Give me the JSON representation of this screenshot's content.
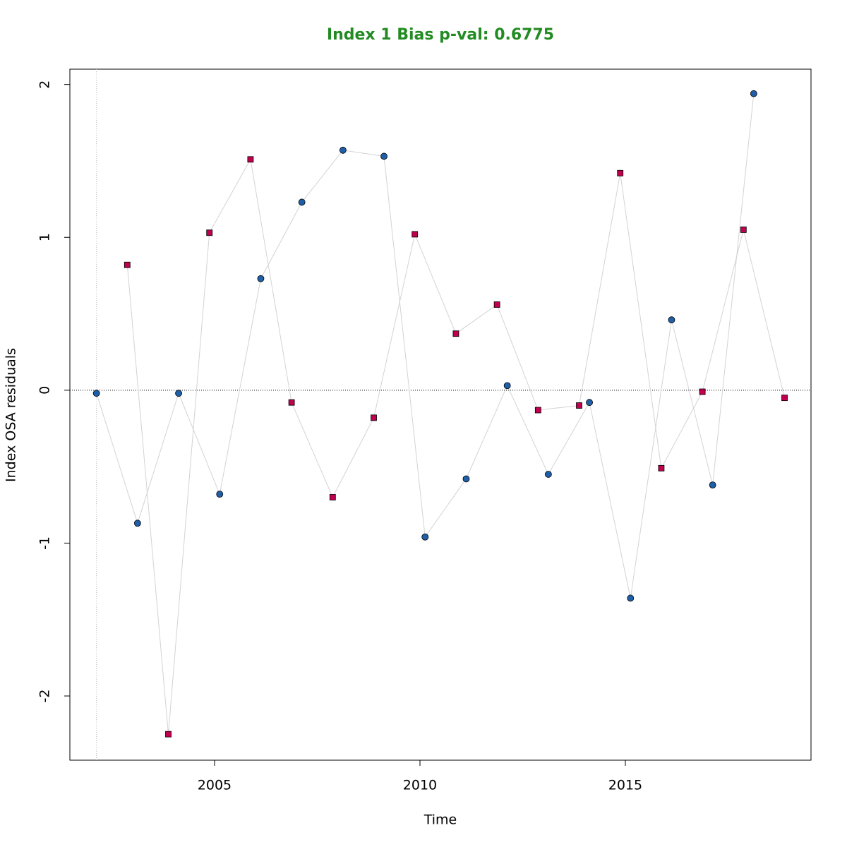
{
  "chart_data": {
    "type": "scatter",
    "title": "Index 1 Bias p-val: 0.6775",
    "x_label": "Time",
    "y_label": "Index OSA residuals",
    "xlim": [
      2001.478,
      2019.519
    ],
    "ylim": [
      -2.42,
      2.1
    ],
    "xticks": [
      2005,
      2010,
      2015
    ],
    "yticks": [
      -2,
      -1,
      0,
      1,
      2
    ],
    "hline": 0,
    "vline": 2002.125,
    "line_color": "#d3d3d3",
    "series": [
      {
        "color": "#1f5fa8",
        "marker": "circle",
        "x": [
          2002.125,
          2003.125,
          2004.125,
          2005.125,
          2006.125,
          2007.125,
          2008.125,
          2009.125,
          2010.125,
          2011.125,
          2012.125,
          2013.125,
          2014.125,
          2015.125,
          2016.125,
          2017.125,
          2018.125
        ],
        "values": [
          -0.02,
          -0.87,
          -0.02,
          -0.68,
          0.73,
          1.23,
          1.57,
          1.53,
          -0.96,
          -0.58,
          0.03,
          -0.55,
          -0.08,
          -1.36,
          0.46,
          -0.62,
          1.94
        ]
      },
      {
        "color": "#c0004e",
        "marker": "square",
        "x": [
          2002.875,
          2003.875,
          2004.875,
          2005.875,
          2006.875,
          2007.875,
          2008.875,
          2009.875,
          2010.875,
          2011.875,
          2012.875,
          2013.875,
          2014.875,
          2015.875,
          2016.875,
          2017.875,
          2018.875
        ],
        "values": [
          0.82,
          -2.25,
          1.03,
          1.51,
          -0.08,
          -0.7,
          -0.18,
          1.02,
          0.37,
          0.56,
          -0.13,
          -0.1,
          1.42,
          -0.51,
          -0.01,
          1.05,
          -0.05
        ]
      }
    ]
  }
}
